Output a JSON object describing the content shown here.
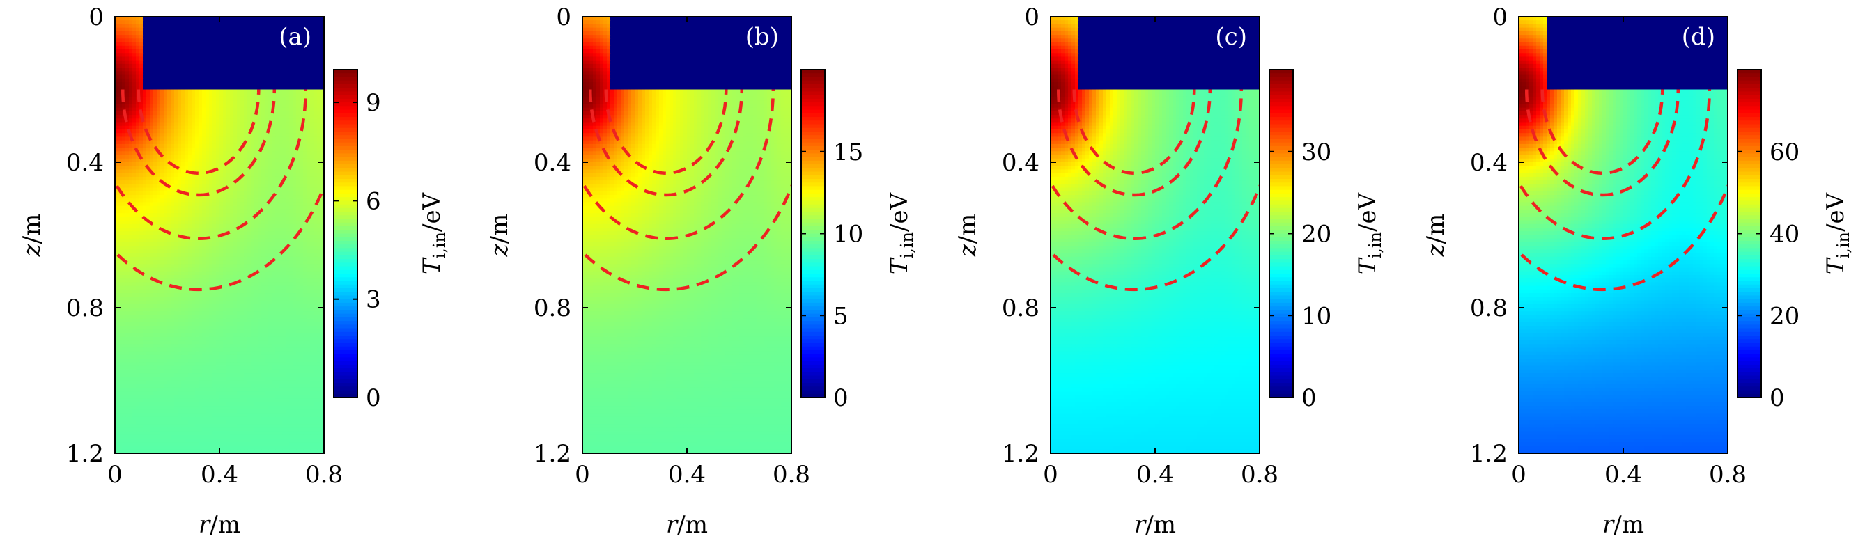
{
  "chart_data": [
    {
      "type": "heatmap",
      "panel_label": "(a)",
      "xlabel_var": "r",
      "xlabel_unit": "/m",
      "ylabel_var": "z",
      "ylabel_unit": "/m",
      "xlim": [
        0,
        0.8
      ],
      "ylim": [
        1.2,
        0
      ],
      "xticks": [
        "0",
        "0.4",
        "0.8"
      ],
      "yticks": [
        "0",
        "0.4",
        "0.8",
        "1.2"
      ],
      "colorbar": {
        "label_var": "T",
        "label_sub": "i,in",
        "label_unit": "/eV",
        "min": 0,
        "max": 10,
        "ticks": [
          0,
          3,
          6,
          9
        ]
      },
      "field": {
        "core": 10,
        "mid": 7.2,
        "bulk": 5.0,
        "bottom": 4.6
      },
      "coil_region": {
        "r": [
          0.11,
          0.8
        ],
        "z": [
          0,
          0.2
        ],
        "value": 0
      }
    },
    {
      "type": "heatmap",
      "panel_label": "(b)",
      "xlabel_var": "r",
      "xlabel_unit": "/m",
      "ylabel_var": "z",
      "ylabel_unit": "/m",
      "xlim": [
        0,
        0.8
      ],
      "ylim": [
        1.2,
        0
      ],
      "xticks": [
        "0",
        "0.4",
        "0.8"
      ],
      "yticks": [
        "0",
        "0.4",
        "0.8",
        "1.2"
      ],
      "colorbar": {
        "label_var": "T",
        "label_sub": "i,in",
        "label_unit": "/eV",
        "min": 0,
        "max": 20,
        "ticks": [
          0,
          5,
          10,
          15
        ]
      },
      "field": {
        "core": 20,
        "mid": 14,
        "bulk": 10,
        "bottom": 9.3
      },
      "coil_region": {
        "r": [
          0.11,
          0.8
        ],
        "z": [
          0,
          0.2
        ],
        "value": 0
      }
    },
    {
      "type": "heatmap",
      "panel_label": "(c)",
      "xlabel_var": "r",
      "xlabel_unit": "/m",
      "ylabel_var": "z",
      "ylabel_unit": "/m",
      "xlim": [
        0,
        0.8
      ],
      "ylim": [
        1.2,
        0
      ],
      "xticks": [
        "0",
        "0.4",
        "0.8"
      ],
      "yticks": [
        "0",
        "0.4",
        "0.8",
        "1.2"
      ],
      "colorbar": {
        "label_var": "T",
        "label_sub": "i,in",
        "label_unit": "/eV",
        "min": 0,
        "max": 40,
        "ticks": [
          0,
          10,
          20,
          30
        ]
      },
      "field": {
        "core": 40,
        "mid": 26,
        "bulk": 16.5,
        "bottom": 14
      },
      "coil_region": {
        "r": [
          0.11,
          0.8
        ],
        "z": [
          0,
          0.2
        ],
        "value": 0
      }
    },
    {
      "type": "heatmap",
      "panel_label": "(d)",
      "xlabel_var": "r",
      "xlabel_unit": "/m",
      "ylabel_var": "z",
      "ylabel_unit": "/m",
      "xlim": [
        0,
        0.8
      ],
      "ylim": [
        1.2,
        0
      ],
      "xticks": [
        "0",
        "0.4",
        "0.8"
      ],
      "yticks": [
        "0",
        "0.4",
        "0.8",
        "1.2"
      ],
      "colorbar": {
        "label_var": "T",
        "label_sub": "i,in",
        "label_unit": "/eV",
        "min": 0,
        "max": 80,
        "ticks": [
          0,
          20,
          40,
          60
        ]
      },
      "field": {
        "core": 80,
        "mid": 50,
        "bulk": 29,
        "bottom": 17
      },
      "coil_region": {
        "r": [
          0.11,
          0.8
        ],
        "z": [
          0,
          0.2
        ],
        "value": 0
      }
    }
  ],
  "annotations": {
    "dashed_arcs": {
      "color": "#ee2222",
      "center": [
        0.32,
        0.2
      ],
      "radii": [
        0.23,
        0.29,
        0.41,
        0.55
      ]
    }
  }
}
